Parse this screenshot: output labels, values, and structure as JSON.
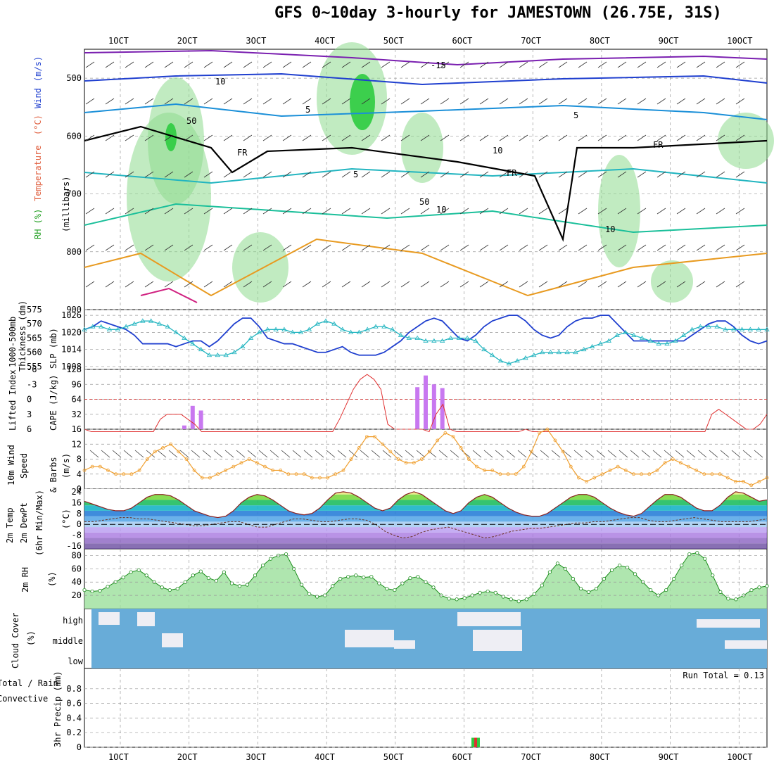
{
  "header": {
    "title": "GFS 0~10day 3-hourly for JAMESTOWN (26.75E, 31S)"
  },
  "colors": {
    "grid": "#999999",
    "rh_green": "#2ecc40",
    "temp_green": "#2ecc40",
    "slp_blue": "#1f3fcf",
    "thick_cyan": "#22b5c0",
    "cape": "#c878f0",
    "li": "#e03030",
    "wind": "#f0a030",
    "cloud": "#68acd8",
    "precip_total": "#2ecc40",
    "precip_conv": "#e03030"
  },
  "x_axis": {
    "labels": [
      "1OCT",
      "2OCT",
      "3OCT",
      "4OCT",
      "5OCT",
      "6OCT",
      "7OCT",
      "8OCT",
      "9OCT",
      "10OCT"
    ]
  },
  "chart_data": [
    {
      "type": "contour",
      "name": "upper",
      "ylabel_parts": [
        "RH (%)",
        "Temperature",
        "(°C)",
        "Wind",
        "(m/s)"
      ],
      "ylabel_milli": "(millibars)",
      "yticks": [
        "500",
        "600",
        "700",
        "800",
        "900"
      ],
      "ylim": [
        450,
        900
      ],
      "annotations": [
        "-15",
        "10",
        "5",
        "5",
        "5",
        "10",
        "FR",
        "FR",
        "FR",
        "50",
        "50",
        "10",
        "10"
      ]
    },
    {
      "type": "line",
      "name": "thickness-slp",
      "ylabel_left": "Thickness (dm)",
      "ylabel_left2": "1000-500mb",
      "ylabel_right": "SLP (mb)",
      "yticks_left": [
        "575",
        "570",
        "565",
        "560",
        "555"
      ],
      "yticks_right": [
        "1026",
        "1020",
        "1014",
        "1008"
      ],
      "ylim_left": [
        554,
        575
      ],
      "ylim_right": [
        1007,
        1028
      ],
      "series": [
        {
          "name": "SLP (mb)",
          "values": [
            1021,
            1022,
            1024,
            1023,
            1022,
            1021,
            1019,
            1016,
            1016,
            1016,
            1016,
            1015,
            1016,
            1017,
            1017,
            1015,
            1017,
            1020,
            1023,
            1025,
            1025,
            1022,
            1018,
            1017,
            1016,
            1016,
            1015,
            1014,
            1013,
            1013,
            1014,
            1015,
            1013,
            1012,
            1012,
            1012,
            1013,
            1015,
            1017,
            1020,
            1022,
            1024,
            1025,
            1024,
            1021,
            1018,
            1017,
            1019,
            1022,
            1024,
            1025,
            1026,
            1026,
            1024,
            1021,
            1019,
            1018,
            1019,
            1022,
            1024,
            1025,
            1025,
            1026,
            1026,
            1023,
            1020,
            1017,
            1017,
            1017,
            1017,
            1017,
            1017,
            1017,
            1019,
            1021,
            1023,
            1024,
            1024,
            1022,
            1019,
            1017,
            1016,
            1017
          ]
        },
        {
          "name": "Thickness (dm)",
          "values": [
            568,
            569,
            569,
            568,
            568,
            569,
            570,
            571,
            571,
            570,
            569,
            567,
            565,
            563,
            561,
            559,
            559,
            559,
            560,
            562,
            565,
            567,
            568,
            568,
            568,
            567,
            567,
            568,
            570,
            571,
            570,
            568,
            567,
            567,
            568,
            569,
            569,
            568,
            566,
            565,
            565,
            564,
            564,
            564,
            565,
            565,
            565,
            564,
            561,
            559,
            557,
            556,
            557,
            558,
            559,
            560,
            560,
            560,
            560,
            560,
            561,
            562,
            563,
            564,
            566,
            567,
            566,
            565,
            564,
            563,
            563,
            564,
            566,
            568,
            569,
            569,
            569,
            568,
            568,
            568,
            568,
            568,
            568
          ]
        }
      ]
    },
    {
      "type": "bar+line",
      "name": "cape-li",
      "ylabel_left": "Lifted Index",
      "ylabel_right": "CAPE (J/kg)",
      "yticks_left": [
        "-6",
        "-3",
        "0",
        "3",
        "6"
      ],
      "yticks_right": [
        "128",
        "96",
        "64",
        "32"
      ],
      "ylim_left": [
        6,
        -6
      ],
      "ylim_right": [
        0,
        128
      ],
      "series": [
        {
          "name": "Lifted Index",
          "values": [
            6,
            7,
            7,
            7,
            7,
            7,
            7,
            7,
            7,
            7,
            7,
            4,
            3,
            3,
            3,
            4,
            5,
            7,
            7,
            7,
            7,
            7,
            7,
            7,
            7,
            7,
            7,
            7,
            7,
            7,
            7,
            7,
            7,
            7,
            7,
            7,
            7,
            4,
            1,
            -2,
            -4,
            -5,
            -4,
            -2,
            5,
            6,
            6,
            6,
            6,
            6,
            7,
            3,
            1,
            6,
            7,
            7,
            7,
            7,
            7,
            7,
            7,
            7,
            7,
            7,
            6,
            7,
            7,
            7,
            7,
            7,
            7,
            7,
            7,
            7,
            7,
            7,
            7,
            7,
            7,
            7,
            7,
            7,
            7,
            7,
            7,
            7,
            7,
            7,
            7,
            7,
            7,
            3,
            2,
            3,
            4,
            5,
            6,
            6,
            5,
            3
          ]
        },
        {
          "name": "CAPE (J/kg)",
          "values": [
            0,
            0,
            0,
            0,
            0,
            0,
            0,
            0,
            0,
            0,
            0,
            0,
            8,
            50,
            40,
            0,
            0,
            0,
            0,
            0,
            0,
            0,
            0,
            0,
            0,
            0,
            0,
            0,
            0,
            0,
            0,
            0,
            0,
            0,
            0,
            0,
            0,
            0,
            0,
            0,
            90,
            115,
            96,
            88,
            0,
            0,
            0,
            0,
            0,
            0,
            0,
            0,
            0,
            0,
            0,
            0,
            0,
            0,
            0,
            0,
            0,
            0,
            0,
            0,
            0,
            0,
            0,
            0,
            0,
            0,
            0,
            0,
            0,
            0,
            0,
            0,
            0,
            0,
            0,
            0,
            0,
            0,
            0
          ]
        }
      ]
    },
    {
      "type": "line",
      "name": "wind10m",
      "ylabel_parts": [
        "10m Wind",
        "Speed",
        "& Barbs",
        "(m/s)"
      ],
      "yticks": [
        "16",
        "12",
        "8",
        "4",
        "0"
      ],
      "ylim": [
        0,
        16
      ],
      "series": [
        {
          "name": "10m Wind Speed",
          "values": [
            5,
            6,
            6,
            5,
            4,
            4,
            4,
            5,
            8,
            10,
            11,
            12,
            10,
            8,
            5,
            3,
            3,
            4,
            5,
            6,
            7,
            8,
            7,
            6,
            5,
            5,
            4,
            4,
            4,
            3,
            3,
            3,
            4,
            5,
            8,
            11,
            14,
            14,
            12,
            10,
            8,
            7,
            7,
            8,
            10,
            13,
            15,
            14,
            11,
            8,
            6,
            5,
            5,
            4,
            4,
            4,
            6,
            10,
            15,
            16,
            13,
            10,
            6,
            3,
            2,
            3,
            4,
            5,
            6,
            5,
            4,
            4,
            4,
            5,
            7,
            8,
            7,
            6,
            5,
            4,
            4,
            4,
            3,
            2,
            2,
            1,
            2,
            3
          ]
        }
      ]
    },
    {
      "type": "area",
      "name": "temp2m",
      "ylabel_parts": [
        "2m Temp",
        "2m DewPt",
        "(6hr Min/Max)",
        "(°C)"
      ],
      "yticks": [
        "24",
        "16",
        "8",
        "0",
        "-8",
        "-16"
      ],
      "ylim": [
        -18,
        26
      ],
      "series": [
        {
          "name": "2m Temp",
          "values": [
            17,
            15,
            13,
            11,
            10,
            10,
            12,
            16,
            20,
            22,
            22,
            21,
            18,
            14,
            10,
            8,
            6,
            5,
            6,
            10,
            16,
            20,
            22,
            21,
            18,
            14,
            10,
            8,
            7,
            8,
            12,
            18,
            23,
            24,
            23,
            20,
            16,
            12,
            10,
            12,
            18,
            22,
            24,
            22,
            18,
            14,
            10,
            8,
            10,
            16,
            20,
            22,
            20,
            16,
            12,
            9,
            7,
            6,
            6,
            8,
            12,
            16,
            20,
            22,
            22,
            20,
            16,
            12,
            9,
            7,
            6,
            8,
            13,
            18,
            22,
            22,
            20,
            16,
            12,
            10,
            10,
            14,
            20,
            24,
            23,
            20,
            17,
            18
          ]
        },
        {
          "name": "2m DewPt",
          "values": [
            2,
            2,
            3,
            4,
            5,
            5,
            4,
            4,
            3,
            2,
            1,
            0,
            -1,
            -1,
            0,
            1,
            2,
            2,
            0,
            -2,
            -2,
            0,
            2,
            4,
            4,
            3,
            2,
            2,
            3,
            4,
            4,
            3,
            0,
            -5,
            -8,
            -10,
            -9,
            -6,
            -4,
            -3,
            -2,
            -4,
            -6,
            -8,
            -10,
            -9,
            -7,
            -5,
            -4,
            -3,
            -3,
            -2,
            -1,
            0,
            1,
            1,
            2,
            2,
            3,
            4,
            5,
            5,
            3,
            2,
            2,
            3,
            4,
            5,
            4,
            3,
            2,
            2,
            2,
            2,
            3,
            4
          ]
        }
      ]
    },
    {
      "type": "area",
      "name": "rh2m",
      "ylabel_parts": [
        "2m RH",
        "(%)"
      ],
      "yticks": [
        "80",
        "60",
        "40",
        "20"
      ],
      "ylim": [
        0,
        90
      ],
      "series": [
        {
          "name": "2m RH",
          "values": [
            28,
            26,
            27,
            33,
            40,
            47,
            55,
            58,
            50,
            40,
            32,
            28,
            30,
            40,
            50,
            56,
            46,
            42,
            55,
            38,
            34,
            36,
            50,
            65,
            75,
            80,
            82,
            60,
            36,
            22,
            18,
            20,
            34,
            45,
            48,
            50,
            47,
            48,
            38,
            30,
            28,
            38,
            46,
            48,
            40,
            32,
            20,
            15,
            14,
            16,
            20,
            24,
            26,
            24,
            18,
            14,
            11,
            14,
            22,
            35,
            55,
            68,
            60,
            45,
            30,
            25,
            30,
            45,
            58,
            65,
            62,
            52,
            40,
            28,
            20,
            28,
            45,
            65,
            82,
            84,
            75,
            50,
            25,
            15,
            14,
            20,
            28,
            32,
            34
          ]
        }
      ]
    },
    {
      "type": "heatmap",
      "name": "cloud",
      "ylabel_parts": [
        "Cloud Cover",
        "(%)"
      ],
      "yticks": [
        "high",
        "middle",
        "low"
      ]
    },
    {
      "type": "bar",
      "name": "precip",
      "ylabel_parts": [
        "3hr Precip (mm)",
        "Total / Rain",
        "Convective"
      ],
      "yticks": [
        "0.8",
        "0.6",
        "0.4",
        "0.2",
        "0"
      ],
      "ylim": [
        0,
        1
      ],
      "run_total": "Run Total = 0.13",
      "bars": [
        {
          "x": 47,
          "total": 0.13,
          "convective": 0.13
        }
      ]
    }
  ]
}
